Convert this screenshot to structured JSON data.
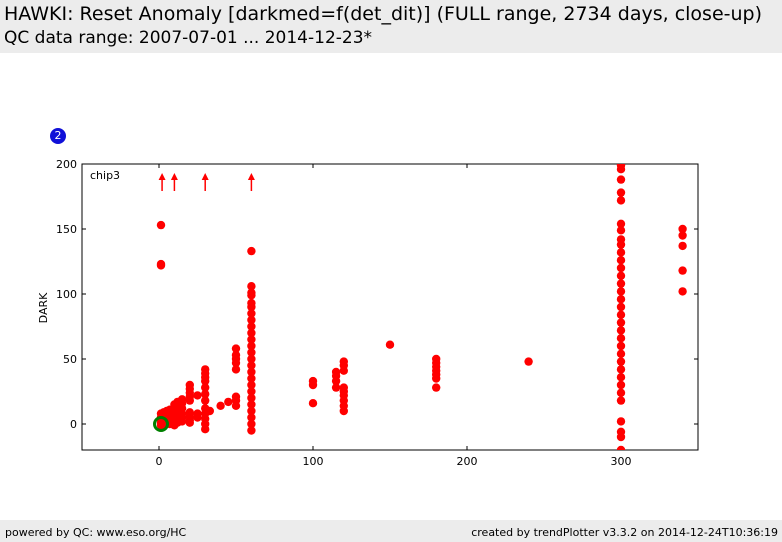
{
  "header": {
    "title": "HAWKI: Reset Anomaly [darkmed=f(det_dit)] (FULL range, 2734 days, close-up)",
    "subtitle": "QC data range: 2007-07-01 ... 2014-12-23*"
  },
  "badge": "2",
  "footer": {
    "left": "powered by QC: www.eso.org/HC",
    "right": "created by trendPlotter v3.3.2 on 2014-12-24T10:36:19"
  },
  "chart_data": {
    "type": "scatter",
    "panel_label": "chip3",
    "xlabel": "",
    "ylabel": "DARK",
    "xlim": [
      -50,
      350
    ],
    "ylim": [
      -20,
      200
    ],
    "x_ticks": [
      0,
      100,
      200,
      300
    ],
    "y_ticks": [
      0,
      50,
      100,
      150,
      200
    ],
    "point_color": "#ff0000",
    "highlight_color": "#008000",
    "highlight_point": {
      "x": 1.3,
      "y": 0
    },
    "off_scale_arrows_x": [
      2,
      10,
      30,
      60
    ],
    "columns": [
      {
        "x": 1.3,
        "values": [
          -1,
          0,
          1,
          3,
          5,
          8,
          122,
          123,
          153
        ]
      },
      {
        "x": 3,
        "values": [
          0,
          2,
          4,
          6,
          9
        ]
      },
      {
        "x": 5,
        "values": [
          1,
          3,
          5,
          7,
          10
        ]
      },
      {
        "x": 7,
        "values": [
          0,
          2,
          4,
          6,
          8,
          11
        ]
      },
      {
        "x": 10,
        "values": [
          -1,
          1,
          3,
          5,
          7,
          9,
          12,
          15
        ]
      },
      {
        "x": 12,
        "values": [
          1,
          4,
          7,
          10,
          13,
          17
        ]
      },
      {
        "x": 15,
        "values": [
          2,
          5,
          8,
          12,
          16,
          19
        ]
      },
      {
        "x": 20,
        "values": [
          1,
          3,
          6,
          9,
          18,
          21,
          24,
          27,
          30
        ]
      },
      {
        "x": 25,
        "values": [
          5,
          8,
          22
        ]
      },
      {
        "x": 30,
        "values": [
          -4,
          0,
          4,
          8,
          12,
          18,
          23,
          28,
          33,
          36,
          39,
          42
        ]
      },
      {
        "x": 33,
        "values": [
          10
        ]
      },
      {
        "x": 40,
        "values": [
          14
        ]
      },
      {
        "x": 45,
        "values": [
          17
        ]
      },
      {
        "x": 50,
        "values": [
          14,
          18,
          21,
          42,
          47,
          50,
          53,
          58
        ]
      },
      {
        "x": 60,
        "values": [
          -5,
          0,
          5,
          10,
          15,
          20,
          25,
          30,
          35,
          40,
          45,
          50,
          55,
          60,
          65,
          70,
          75,
          80,
          85,
          90,
          93,
          99,
          101,
          106,
          133
        ]
      },
      {
        "x": 100,
        "values": [
          16,
          30,
          33
        ]
      },
      {
        "x": 115,
        "values": [
          28,
          33,
          37,
          40
        ]
      },
      {
        "x": 120,
        "values": [
          10,
          14,
          18,
          22,
          25,
          28,
          41,
          45,
          48
        ]
      },
      {
        "x": 150,
        "values": [
          61
        ]
      },
      {
        "x": 180,
        "values": [
          28,
          35,
          38,
          41,
          44,
          47,
          50
        ]
      },
      {
        "x": 240,
        "values": [
          48
        ]
      },
      {
        "x": 300,
        "values": [
          -20,
          -10,
          -6,
          2,
          18,
          24,
          30,
          36,
          42,
          48,
          54,
          60,
          66,
          72,
          78,
          84,
          90,
          96,
          102,
          108,
          114,
          120,
          126,
          132,
          138,
          142,
          149,
          154,
          172,
          178,
          188,
          196,
          199
        ]
      },
      {
        "x": 340,
        "values": [
          102,
          118,
          137,
          145,
          150
        ]
      }
    ]
  }
}
